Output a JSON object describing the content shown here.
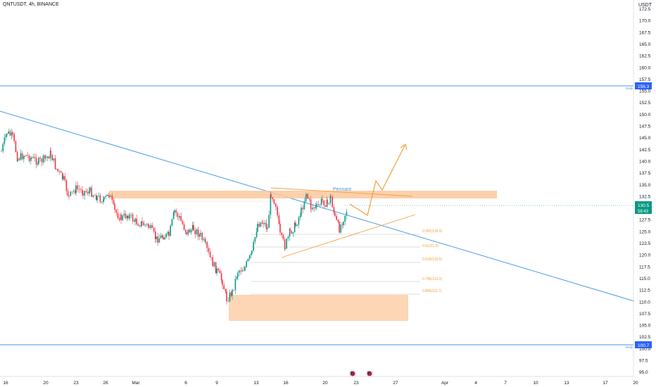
{
  "header": {
    "symbol_line": "QNTUSDT, 4h, BINANCE"
  },
  "axis": {
    "currency": "USDT",
    "y_labels": [
      "172.5",
      "170.0",
      "167.5",
      "165.0",
      "162.5",
      "160.0",
      "157.5",
      "155.0",
      "152.5",
      "150.0",
      "147.5",
      "145.0",
      "142.5",
      "140.0",
      "137.5",
      "135.0",
      "132.5",
      "130.0",
      "127.5",
      "125.0",
      "122.5",
      "120.0",
      "117.5",
      "115.0",
      "112.5",
      "110.0",
      "107.5",
      "105.0",
      "102.5",
      "100.0",
      "97.5",
      "95.0"
    ],
    "x_labels": [
      "16",
      "20",
      "23",
      "26",
      "Mar",
      "6",
      "9",
      "13",
      "16",
      "20",
      "23",
      "27",
      "Apr",
      "4",
      "7",
      "10",
      "13",
      "17",
      "20"
    ]
  },
  "price_tags": {
    "upper_level": "156.3",
    "lower_level": "100.7",
    "current_price": "130.5",
    "countdown": "58:43"
  },
  "level_labels": {
    "upper": "Daily",
    "lower": "Daily"
  },
  "annotations": {
    "pattern_label": "Pennant",
    "fib_levels": [
      "0.382(124.5)",
      "0.5(121.9)",
      "0.618(118.5)",
      "0.786(114.3)",
      "0.886(111.7)"
    ]
  },
  "colors": {
    "trendline": "#4a9ae6",
    "level_line": "#4a9ae6",
    "zone": "#fbc89c",
    "pennant": "#f2a13c",
    "bull": "#089981",
    "bear": "#f23645",
    "price_tag": "#089981"
  }
}
